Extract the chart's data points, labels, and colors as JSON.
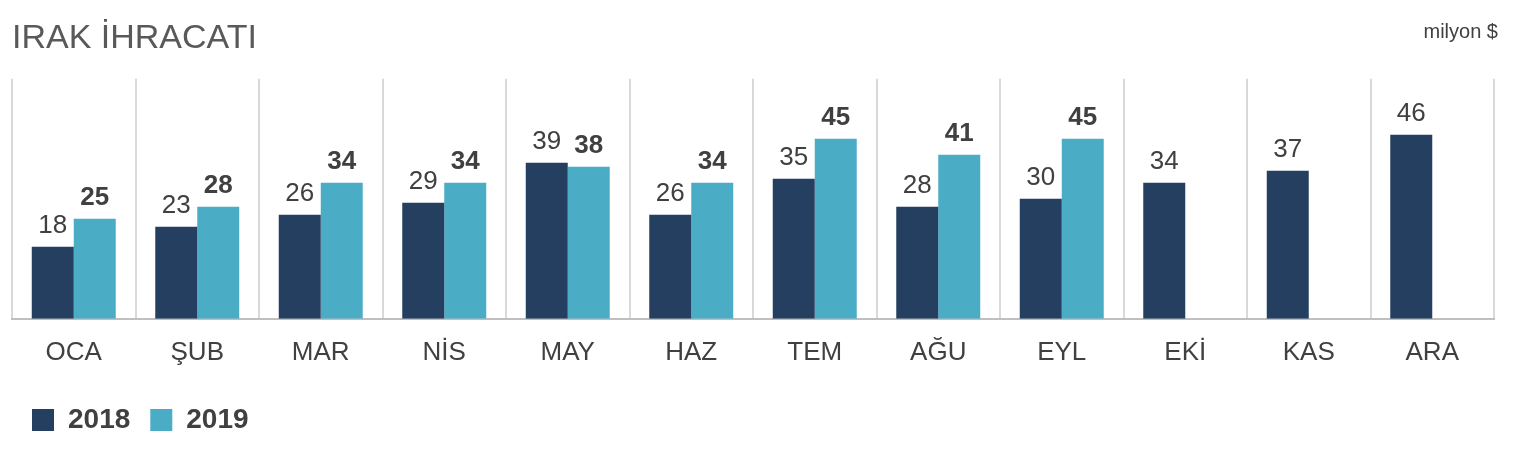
{
  "chart_data": {
    "type": "bar",
    "title": "IRAK İHRACATI",
    "annotations": [
      "milyon $"
    ],
    "categories": [
      "OCA",
      "ŞUB",
      "MAR",
      "NİS",
      "MAY",
      "HAZ",
      "TEM",
      "AĞU",
      "EYL",
      "EKİ",
      "KAS",
      "ARA"
    ],
    "series": [
      {
        "name": "2018",
        "color": "#243f60",
        "values": [
          18,
          23,
          26,
          29,
          39,
          26,
          35,
          28,
          30,
          34,
          37,
          46
        ]
      },
      {
        "name": "2019",
        "color": "#4bacc6",
        "values": [
          25,
          28,
          34,
          34,
          38,
          34,
          45,
          41,
          45,
          null,
          null,
          null
        ]
      }
    ],
    "data_labels": true,
    "grid": "x",
    "legend": "bottom left"
  }
}
